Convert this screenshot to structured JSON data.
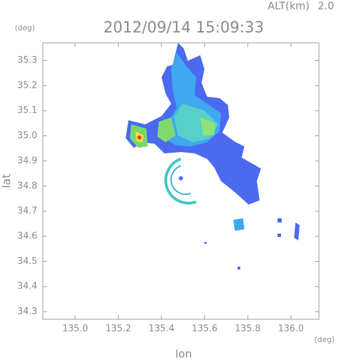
{
  "chart_data": {
    "type": "radar-map",
    "title": "2012/09/14 15:09:33",
    "altitude_label": "ALT(km)",
    "altitude_value": "2.0",
    "y_unit": "(deg)",
    "x_unit": "(deg)",
    "xlabel": "lon",
    "ylabel": "lat",
    "xlim": [
      134.85,
      136.13
    ],
    "ylim": [
      34.27,
      35.37
    ],
    "xticks": [
      {
        "value": 135,
        "label": "135.0"
      },
      135.2,
      135.4,
      135.6,
      135.8,
      {
        "value": 136,
        "label": "136.0"
      }
    ],
    "yticks": [
      34.3,
      34.4,
      34.5,
      34.6,
      34.7,
      34.8,
      34.9,
      {
        "value": 35,
        "label": "35.0"
      },
      35.1,
      35.2,
      35.3
    ]
  }
}
